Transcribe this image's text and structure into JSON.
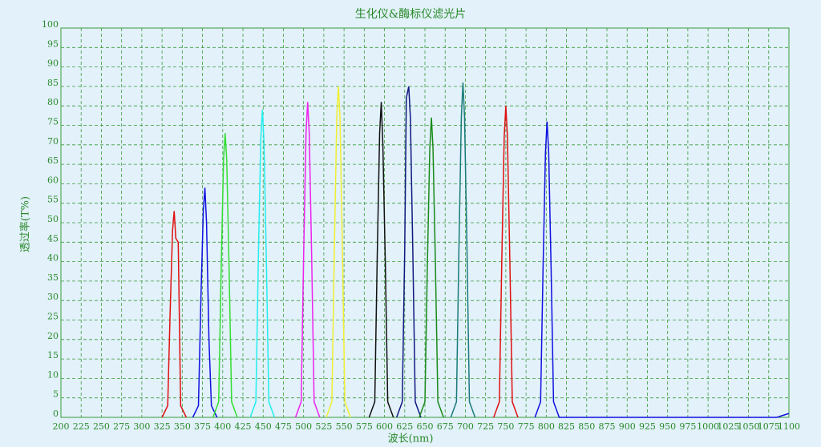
{
  "chart_data": {
    "type": "line",
    "title": "生化仪&酶标仪滤光片",
    "xlabel": "波长(nm)",
    "ylabel": "透过率(T%)",
    "xlim": [
      200,
      1100
    ],
    "ylim": [
      0,
      100
    ],
    "xticks": [
      200,
      225,
      250,
      275,
      300,
      325,
      350,
      375,
      400,
      425,
      450,
      475,
      500,
      525,
      550,
      575,
      600,
      625,
      650,
      675,
      700,
      725,
      750,
      775,
      800,
      825,
      850,
      875,
      900,
      925,
      950,
      975,
      1000,
      1025,
      1050,
      1075,
      1100
    ],
    "yticks": [
      0,
      5,
      10,
      15,
      20,
      25,
      30,
      35,
      40,
      45,
      50,
      55,
      60,
      65,
      70,
      75,
      80,
      85,
      90,
      95,
      100
    ],
    "grid": true,
    "series": [
      {
        "color": "#e01010",
        "x": [
          325,
          332,
          335,
          338,
          340,
          342,
          345,
          348,
          355
        ],
        "values": [
          0,
          3,
          27,
          48,
          53,
          46,
          45,
          3,
          0
        ]
      },
      {
        "color": "#1010e0",
        "x": [
          363,
          370,
          373,
          376,
          378,
          380,
          383,
          386,
          393
        ],
        "values": [
          0,
          3,
          30,
          53,
          59,
          50,
          20,
          3,
          0
        ]
      },
      {
        "color": "#33dd33",
        "x": [
          388,
          395,
          398,
          401,
          403,
          405,
          408,
          411,
          418
        ],
        "values": [
          0,
          4,
          37,
          66,
          73,
          66,
          37,
          4,
          0
        ]
      },
      {
        "color": "#22eeee",
        "x": [
          434,
          441,
          444,
          447,
          449,
          451,
          454,
          457,
          464
        ],
        "values": [
          0,
          4,
          40,
          71,
          79,
          71,
          40,
          4,
          0
        ]
      },
      {
        "color": "#ee22ee",
        "x": [
          490,
          497,
          500,
          503,
          505,
          507,
          510,
          513,
          520
        ],
        "values": [
          0,
          4,
          41,
          73,
          81,
          73,
          41,
          4,
          0
        ]
      },
      {
        "color": "#f0f030",
        "x": [
          528,
          535,
          538,
          541,
          543,
          545,
          548,
          551,
          558
        ],
        "values": [
          0,
          4,
          43,
          77,
          85,
          77,
          43,
          4,
          0
        ]
      },
      {
        "color": "#101010",
        "x": [
          581,
          588,
          591,
          594,
          596,
          598,
          601,
          604,
          611
        ],
        "values": [
          0,
          4,
          41,
          73,
          81,
          70,
          40,
          4,
          0
        ]
      },
      {
        "color": "#101880",
        "x": [
          615,
          622,
          625,
          627,
          630,
          632,
          635,
          638,
          645
        ],
        "values": [
          0,
          4,
          43,
          82,
          85,
          77,
          43,
          4,
          0
        ]
      },
      {
        "color": "#1a8a1a",
        "x": [
          643,
          650,
          653,
          656,
          658,
          660,
          663,
          666,
          673
        ],
        "values": [
          0,
          4,
          39,
          69,
          77,
          69,
          39,
          4,
          0
        ]
      },
      {
        "color": "#1a7a7a",
        "x": [
          682,
          689,
          692,
          695,
          697,
          699,
          702,
          705,
          712
        ],
        "values": [
          0,
          4,
          43,
          77,
          86,
          77,
          43,
          4,
          0
        ]
      },
      {
        "color": "#e01010",
        "x": [
          735,
          742,
          745,
          748,
          750,
          752,
          755,
          758,
          765
        ],
        "values": [
          0,
          4,
          40,
          72,
          80,
          72,
          40,
          4,
          0
        ]
      },
      {
        "color": "#1010e0",
        "x": [
          786,
          793,
          796,
          799,
          801,
          803,
          806,
          809,
          816,
          1085,
          1100
        ],
        "values": [
          0,
          4,
          38,
          68,
          76,
          68,
          38,
          4,
          0,
          0,
          1
        ]
      }
    ]
  }
}
